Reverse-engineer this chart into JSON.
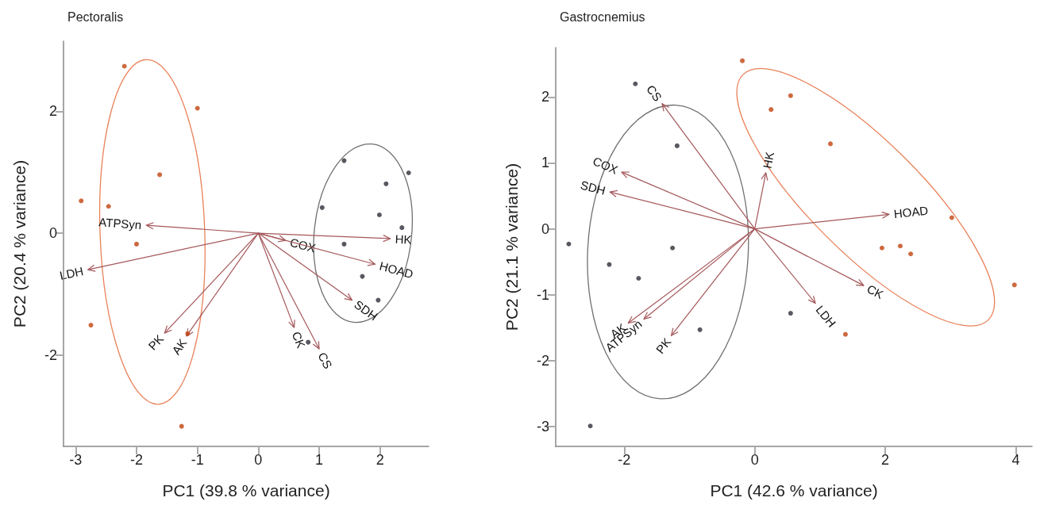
{
  "chart_data": [
    {
      "type": "scatter",
      "title": "Pectoralis",
      "xlabel": "PC1 (39.8 % variance)",
      "ylabel": "PC2 (20.4 % variance)",
      "xlim": [
        -3.2,
        2.8
      ],
      "xticks": [
        -3,
        -2,
        -1,
        0,
        1,
        2
      ],
      "ylim": [
        -3.5,
        3.15
      ],
      "yticks": [
        -2,
        0,
        2
      ],
      "marker": "circle",
      "series": [
        {
          "color": "#c1440e",
          "x": [
            -2.2,
            -1.0,
            -1.62,
            -2.91,
            -2.46,
            -2.0,
            -2.75,
            -1.16,
            -1.26
          ],
          "values": [
            2.74,
            2.05,
            0.96,
            0.53,
            0.44,
            -0.18,
            -1.51,
            -1.65,
            -3.17
          ]
        },
        {
          "color": "#2e2e3a",
          "x": [
            1.41,
            2.1,
            2.47,
            1.05,
            1.99,
            2.36,
            1.41,
            1.71,
            1.97,
            0.82
          ],
          "values": [
            1.19,
            0.81,
            0.99,
            0.42,
            0.3,
            0.09,
            -0.18,
            -0.71,
            -1.1,
            -1.79
          ]
        }
      ],
      "annotations": [
        "ATPSyn",
        "LDH",
        "PK",
        "AK",
        "COX",
        "HK",
        "HOAD",
        "SDH",
        "CK",
        "CS"
      ]
    },
    {
      "type": "scatter",
      "title": "Gastrocnemius",
      "xlabel": "PC1 (42.6 % variance)",
      "ylabel": "PC2 (21.1 % variance)",
      "xlim": [
        -3.05,
        4.25
      ],
      "xticks": [
        -2,
        0,
        2,
        4
      ],
      "ylim": [
        -3.3,
        2.75
      ],
      "yticks": [
        -3,
        -2,
        -1,
        0,
        1,
        2
      ],
      "marker": "circle",
      "series": [
        {
          "color": "#c1440e",
          "x": [
            -0.19,
            0.25,
            0.55,
            1.16,
            1.95,
            2.23,
            2.39,
            3.02,
            3.98,
            1.39
          ],
          "values": [
            2.55,
            1.81,
            2.02,
            1.29,
            -0.29,
            -0.26,
            -0.38,
            0.17,
            -0.85,
            -1.6
          ]
        },
        {
          "color": "#2e2e3a",
          "x": [
            -1.83,
            -1.19,
            -2.85,
            -2.23,
            -1.78,
            -1.26,
            -0.84,
            0.55,
            -2.52
          ],
          "values": [
            2.2,
            1.26,
            -0.23,
            -0.54,
            -0.75,
            -0.29,
            -1.53,
            -1.28,
            -2.99
          ]
        }
      ],
      "annotations": [
        "CS",
        "COX",
        "SDH",
        "HK",
        "HOAD",
        "CK",
        "LDH",
        "AK",
        "ATPSyn",
        "PK"
      ]
    }
  ]
}
